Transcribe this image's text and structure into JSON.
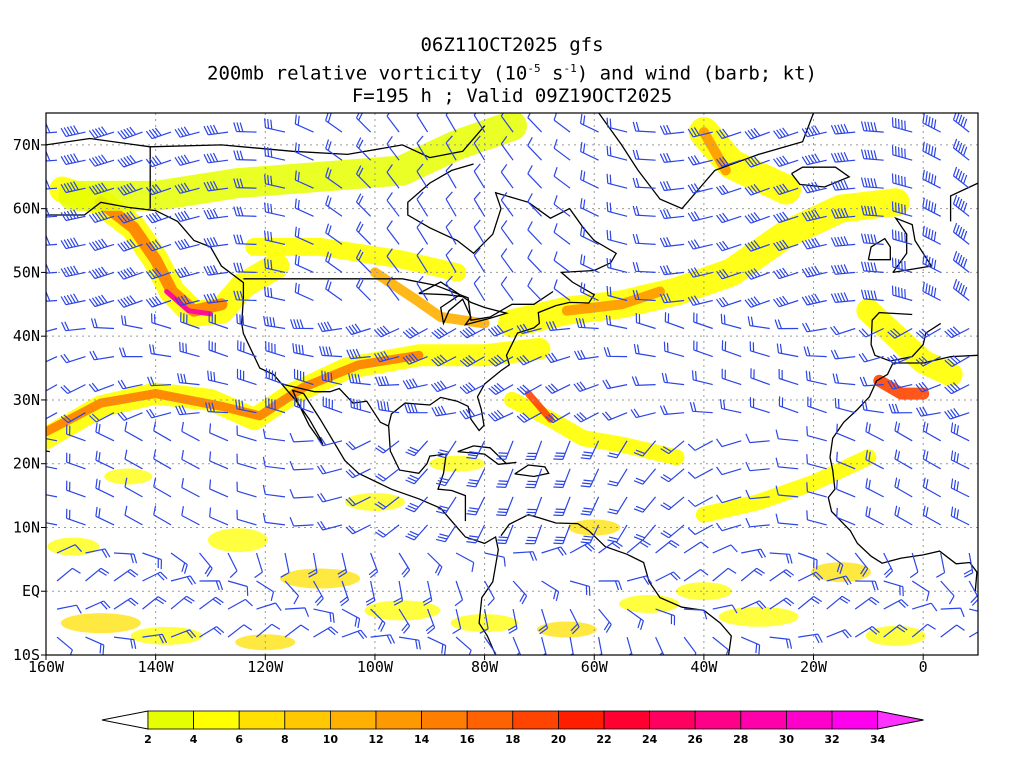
{
  "titles": {
    "line1": "06Z11OCT2025 gfs",
    "line2_pre": "200mb relative vorticity (10",
    "line2_exp1": "-5",
    "line2_mid": " s",
    "line2_exp2": "-1",
    "line2_post": ") and wind (barb; kt)",
    "line3": "F=195 h ; Valid 09Z19OCT2025"
  },
  "axes": {
    "lon_ticks": [
      "160W",
      "140W",
      "120W",
      "100W",
      "80W",
      "60W",
      "40W",
      "20W",
      "0"
    ],
    "lon_values": [
      -160,
      -140,
      -120,
      -100,
      -80,
      -60,
      -40,
      -20,
      0
    ],
    "lat_ticks": [
      "70N",
      "60N",
      "50N",
      "40N",
      "30N",
      "20N",
      "10N",
      "EQ",
      "10S"
    ],
    "lat_values": [
      70,
      60,
      50,
      40,
      30,
      20,
      10,
      0,
      -10
    ],
    "lon_range": [
      -160,
      10
    ],
    "lat_range": [
      -10,
      75
    ],
    "grid": "dotted"
  },
  "colorbar": {
    "labels": [
      "2",
      "4",
      "6",
      "8",
      "10",
      "12",
      "14",
      "16",
      "18",
      "20",
      "22",
      "24",
      "26",
      "28",
      "30",
      "32",
      "34"
    ],
    "colors": [
      "#e6ff00",
      "#ffff00",
      "#ffe000",
      "#ffc800",
      "#ffb000",
      "#ff9900",
      "#ff7e00",
      "#ff6200",
      "#ff4400",
      "#ff1e00",
      "#ff0030",
      "#ff0060",
      "#ff0088",
      "#ff00aa",
      "#ff00cc",
      "#ff00ee"
    ],
    "low_end_color": "#ffffff",
    "high_end_color": "#ff33ff"
  },
  "colors": {
    "barb": "#2b45e8",
    "coast": "#000000",
    "grid": "#999999"
  }
}
